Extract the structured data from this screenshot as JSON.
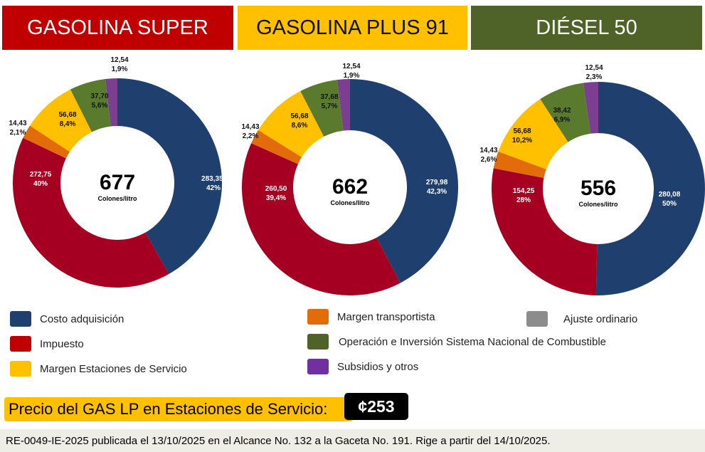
{
  "colors": {
    "costo": "#1f3f6e",
    "impuesto": "#a50021",
    "transportista": "#e36c0a",
    "margen": "#ffc000",
    "operacion": "#5a7a2e",
    "subsidios": "#7a3f91",
    "ajuste": "#8c8c8c"
  },
  "chart_data": [
    {
      "type": "pie",
      "title": "GASOLINA SUPER",
      "header_color": "#c00000",
      "total": "677",
      "unit": "Colones/litro",
      "categories": [
        "Costo adquisición",
        "Impuesto",
        "Margen transportista",
        "Margen Estaciones de Servicio",
        "Operación e Inversión Sistema Nacional de Combustible",
        "Subsidios y otros"
      ],
      "values": [
        283.35,
        272.75,
        14.43,
        56.68,
        37.7,
        12.54
      ],
      "labels": [
        [
          "283,35;",
          "42%"
        ],
        [
          "272,75",
          "40%"
        ],
        [
          "14,43",
          "2,1%"
        ],
        [
          "56,68",
          "8,4%"
        ],
        [
          "37,70",
          "5,6%"
        ],
        [
          "12,54",
          "1,9%"
        ]
      ]
    },
    {
      "type": "pie",
      "title": "GASOLINA PLUS 91",
      "header_color": "#ffc000",
      "total": "662",
      "unit": "Colones/litro",
      "categories": [
        "Costo adquisición",
        "Impuesto",
        "Margen transportista",
        "Margen Estaciones de Servicio",
        "Operación e Inversión Sistema Nacional de Combustible",
        "Subsidios y otros"
      ],
      "values": [
        279.98,
        260.5,
        14.43,
        56.68,
        37.68,
        12.54
      ],
      "labels": [
        [
          "279,98",
          "42,3%"
        ],
        [
          "260,50",
          "39,4%"
        ],
        [
          "14,43",
          "2,2%"
        ],
        [
          "56,68",
          "8,6%"
        ],
        [
          "37,68",
          "5,7%"
        ],
        [
          "12,54",
          "1,9%"
        ]
      ]
    },
    {
      "type": "pie",
      "title": "DIÉSEL 50",
      "header_color": "#4f6228",
      "total": "556",
      "unit": "Colones/litro",
      "categories": [
        "Costo adquisición",
        "Impuesto",
        "Margen transportista",
        "Margen Estaciones de Servicio",
        "Operación e Inversión Sistema Nacional de Combustible",
        "Subsidios y otros"
      ],
      "values": [
        280.08,
        154.25,
        14.43,
        56.68,
        38.42,
        12.54
      ],
      "labels": [
        [
          "280,08",
          "50%"
        ],
        [
          "154,25",
          "28%"
        ],
        [
          "14,43",
          "2,6%"
        ],
        [
          "56,68",
          "10,2%"
        ],
        [
          "38,42",
          "6,9%"
        ],
        [
          "12,54",
          "2,3%"
        ]
      ]
    }
  ],
  "legend": [
    {
      "label": "Costo adquisición",
      "key": "costo"
    },
    {
      "label": "Impuesto",
      "key": "impuesto"
    },
    {
      "label": "Margen Estaciones de Servicio",
      "key": "margen"
    },
    {
      "label": "Margen transportista",
      "key": "transportista"
    },
    {
      "label": "Operación e Inversión Sistema Nacional de Combustible",
      "key": "operacion"
    },
    {
      "label": "Subsidios y otros",
      "key": "subsidios"
    },
    {
      "label": "Ajuste ordinario",
      "key": "ajuste"
    }
  ],
  "gas_lp": {
    "label": "Precio del GAS LP en Estaciones de Servicio:",
    "price": "¢253"
  },
  "footer": {
    "text": "RE-0049-IE-2025 publicada el 13/10/2025 en el Alcance No. 132 a la Gaceta No. 191. Rige a partir del  14/10/2025."
  }
}
